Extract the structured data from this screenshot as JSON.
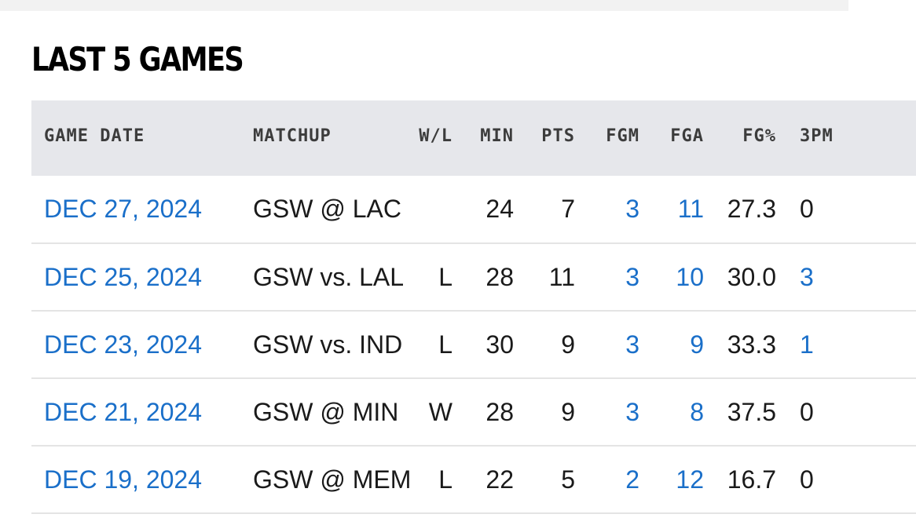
{
  "section": {
    "title": "LAST 5 GAMES"
  },
  "table": {
    "headers": [
      "GAME DATE",
      "MATCHUP",
      "W/L",
      "MIN",
      "PTS",
      "FGM",
      "FGA",
      "FG%",
      "3PM"
    ],
    "rows": [
      {
        "date": "DEC 27, 2024",
        "matchup": "GSW @ LAC",
        "wl": "",
        "min": "24",
        "pts": "7",
        "fgm": "3",
        "fga": "11",
        "fgp": "27.3",
        "tpm": "0"
      },
      {
        "date": "DEC 25, 2024",
        "matchup": "GSW vs. LAL",
        "wl": "L",
        "min": "28",
        "pts": "11",
        "fgm": "3",
        "fga": "10",
        "fgp": "30.0",
        "tpm": "3"
      },
      {
        "date": "DEC 23, 2024",
        "matchup": "GSW vs. IND",
        "wl": "L",
        "min": "30",
        "pts": "9",
        "fgm": "3",
        "fga": "9",
        "fgp": "33.3",
        "tpm": "1"
      },
      {
        "date": "DEC 21, 2024",
        "matchup": "GSW @ MIN",
        "wl": "W",
        "min": "28",
        "pts": "9",
        "fgm": "3",
        "fga": "8",
        "fgp": "37.5",
        "tpm": "0"
      },
      {
        "date": "DEC 19, 2024",
        "matchup": "GSW @ MEM",
        "wl": "L",
        "min": "22",
        "pts": "5",
        "fgm": "2",
        "fga": "12",
        "fgp": "16.7",
        "tpm": "0"
      }
    ]
  },
  "colors": {
    "link": "#1a6fc9",
    "header_bg": "#e6e7eb"
  }
}
